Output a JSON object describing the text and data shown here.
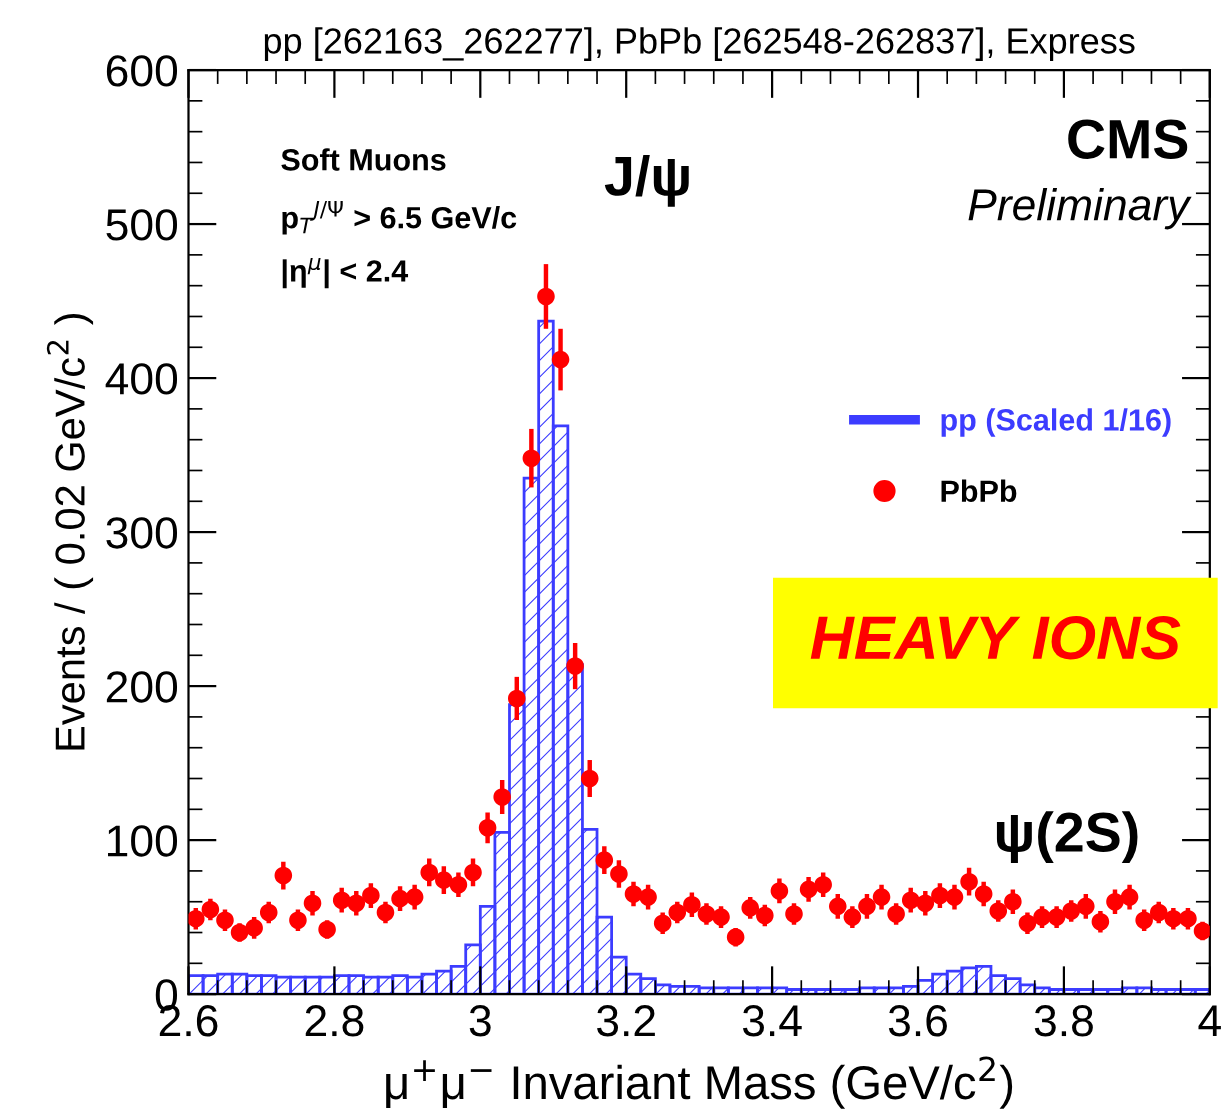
{
  "chart_data": {
    "type": "histogram",
    "title": "pp [262163_262277], PbPb [262548-262837], Express",
    "xlabel": "μ$^{+}$μ$^{−}$ Invariant Mass (GeV/c$^{2}$)",
    "ylabel": "Events / ( 0.02 GeV/c$^{2}$ )",
    "xlim": [
      2.6,
      4.0
    ],
    "ylim": [
      0,
      600
    ],
    "xticks": [
      {
        "value": 2.6,
        "label": "2.6"
      },
      {
        "value": 2.8,
        "label": "2.8"
      },
      {
        "value": 3.0,
        "label": "3"
      },
      {
        "value": 3.2,
        "label": "3.2"
      },
      {
        "value": 3.4,
        "label": "3.4"
      },
      {
        "value": 3.6,
        "label": "3.6"
      },
      {
        "value": 3.8,
        "label": "3.8"
      },
      {
        "value": 4.0,
        "label": "4"
      }
    ],
    "yticks": [
      0,
      100,
      200,
      300,
      400,
      500,
      600
    ],
    "grid": false,
    "legend": "right",
    "marker": "circle",
    "series": [
      {
        "name": "pp (Scaled 1/16)",
        "color": "#3c3cff",
        "bins": [
          2.6,
          2.62,
          2.64,
          2.66,
          2.68,
          2.7,
          2.72,
          2.74,
          2.76,
          2.78,
          2.8,
          2.82,
          2.84,
          2.86,
          2.88,
          2.9,
          2.92,
          2.94,
          2.96,
          2.98,
          3.0,
          3.02,
          3.04,
          3.06,
          3.08,
          3.1,
          3.12,
          3.14,
          3.16,
          3.18,
          3.2,
          3.22,
          3.24,
          3.26,
          3.28,
          3.3,
          3.32,
          3.34,
          3.36,
          3.38,
          3.4,
          3.42,
          3.44,
          3.46,
          3.48,
          3.5,
          3.52,
          3.54,
          3.56,
          3.58,
          3.6,
          3.62,
          3.64,
          3.66,
          3.68,
          3.7,
          3.72,
          3.74,
          3.76,
          3.78,
          3.8,
          3.82,
          3.84,
          3.86,
          3.88,
          3.9,
          3.92,
          3.94,
          3.96,
          3.98,
          4.0
        ],
        "values": [
          12,
          12,
          13,
          13,
          12,
          12,
          11,
          11,
          11,
          11,
          12,
          12,
          11,
          11,
          12,
          11,
          13,
          15,
          18,
          32,
          57,
          105,
          188,
          335,
          437,
          369,
          214,
          107,
          50,
          24,
          13,
          10,
          6,
          5,
          5,
          4,
          4,
          4,
          4,
          4,
          4,
          3,
          3,
          3,
          3,
          3,
          4,
          4,
          4,
          5,
          9,
          13,
          15,
          17,
          18,
          12,
          10,
          6,
          4,
          3,
          3,
          3,
          3,
          3,
          4,
          4,
          3,
          3,
          3,
          3
        ]
      },
      {
        "name": "PbPb",
        "type": "scatter",
        "color": "#ff0000",
        "x": [
          2.61,
          2.63,
          2.65,
          2.67,
          2.69,
          2.71,
          2.73,
          2.75,
          2.77,
          2.79,
          2.81,
          2.83,
          2.85,
          2.87,
          2.89,
          2.91,
          2.93,
          2.95,
          2.97,
          2.99,
          3.01,
          3.03,
          3.05,
          3.07,
          3.09,
          3.11,
          3.13,
          3.15,
          3.17,
          3.19,
          3.21,
          3.23,
          3.25,
          3.27,
          3.29,
          3.31,
          3.33,
          3.35,
          3.37,
          3.39,
          3.41,
          3.43,
          3.45,
          3.47,
          3.49,
          3.51,
          3.53,
          3.55,
          3.57,
          3.59,
          3.61,
          3.63,
          3.65,
          3.67,
          3.69,
          3.71,
          3.73,
          3.75,
          3.77,
          3.79,
          3.81,
          3.83,
          3.85,
          3.87,
          3.89,
          3.91,
          3.93,
          3.95,
          3.97,
          3.99
        ],
        "values": [
          49,
          55,
          48,
          40,
          43,
          53,
          77,
          48,
          59,
          42,
          61,
          59,
          64,
          53,
          62,
          63,
          79,
          74,
          71,
          79,
          108,
          128,
          192,
          348,
          453,
          412,
          213,
          140,
          87,
          78,
          65,
          63,
          46,
          53,
          58,
          52,
          50,
          37,
          56,
          51,
          67,
          52,
          68,
          71,
          57,
          50,
          57,
          63,
          52,
          61,
          59,
          64,
          63,
          73,
          65,
          54,
          60,
          46,
          50,
          50,
          54,
          57,
          47,
          60,
          63,
          48,
          53,
          49,
          49,
          41
        ],
        "errors": [
          7,
          7,
          7,
          6,
          7,
          7,
          9,
          7,
          8,
          6,
          8,
          8,
          8,
          7,
          8,
          8,
          9,
          9,
          8,
          9,
          10,
          11,
          14,
          19,
          21,
          20,
          15,
          12,
          9,
          9,
          8,
          8,
          7,
          7,
          8,
          7,
          7,
          6,
          7,
          7,
          8,
          7,
          8,
          8,
          8,
          7,
          8,
          8,
          7,
          8,
          8,
          8,
          8,
          9,
          8,
          7,
          8,
          7,
          7,
          7,
          7,
          8,
          7,
          8,
          8,
          7,
          7,
          7,
          7,
          6
        ]
      }
    ],
    "annotations": [
      "J/ψ",
      "ψ(2S)",
      "Soft Muons",
      "p$_{T}$$^{J/Ψ}$ > 6.5 GeV/c",
      "|η$^{μ}$| < 2.4",
      "CMS",
      "Preliminary",
      "HEAVY IONS"
    ]
  }
}
